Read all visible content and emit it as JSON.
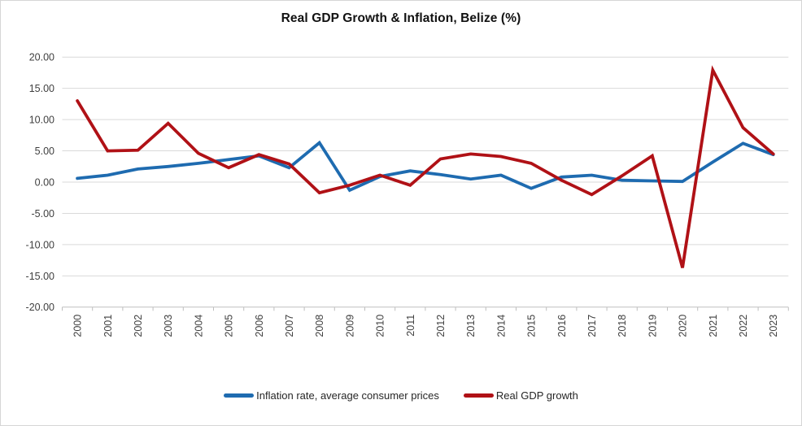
{
  "window": {
    "background": "#ffffff",
    "frame_border": "#d6d6d6"
  },
  "header": {
    "title": "Real GDP Growth & Inflation, Belize (%)"
  },
  "axes": {
    "y_tick_labels": [
      "20.00",
      "15.00",
      "10.00",
      "5.00",
      "0.00",
      "-5.00",
      "-10.00",
      "-15.00",
      "-20.00"
    ],
    "label_color": "#3f3f3f",
    "gridline_color": "#d9d9d9",
    "axis_line_color": "#bfbfbf"
  },
  "legend": {
    "items": [
      {
        "label": "Inflation rate, average consumer prices",
        "color": "#1e6bb0"
      },
      {
        "label": "Real GDP growth",
        "color": "#b01116"
      }
    ]
  },
  "chart_data": {
    "type": "line",
    "title": "Real GDP Growth & Inflation, Belize (%)",
    "categories": [
      "2000",
      "2001",
      "2002",
      "2003",
      "2004",
      "2005",
      "2006",
      "2007",
      "2008",
      "2009",
      "2010",
      "2011",
      "2012",
      "2013",
      "2014",
      "2015",
      "2016",
      "2017",
      "2018",
      "2019",
      "2020",
      "2021",
      "2022",
      "2023"
    ],
    "series": [
      {
        "name": "Inflation rate, average consumer prices",
        "color": "#1e6bb0",
        "values": [
          0.6,
          1.1,
          2.1,
          2.5,
          3.0,
          3.6,
          4.2,
          2.3,
          6.3,
          -1.3,
          0.9,
          1.8,
          1.2,
          0.5,
          1.1,
          -1.0,
          0.8,
          1.1,
          0.3,
          0.2,
          0.1,
          3.2,
          6.2,
          4.4
        ]
      },
      {
        "name": "Real GDP growth",
        "color": "#b01116",
        "values": [
          13.0,
          5.0,
          5.1,
          9.4,
          4.6,
          2.3,
          4.4,
          2.9,
          -1.7,
          -0.5,
          1.1,
          -0.5,
          3.7,
          4.5,
          4.1,
          3.0,
          0.3,
          -2.0,
          1.0,
          4.2,
          -13.7,
          17.9,
          8.7,
          4.5
        ]
      }
    ],
    "xlabel": "",
    "ylabel": "",
    "ylim": [
      -20,
      20
    ],
    "ytick_step": 5,
    "grid": true,
    "legend_position": "bottom"
  }
}
